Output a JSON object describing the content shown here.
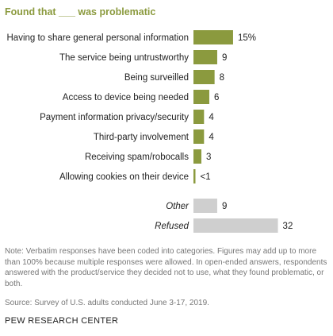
{
  "chart_data": {
    "type": "bar",
    "orientation": "horizontal",
    "title": "Found that ___ was problematic",
    "categories": [
      "Having to share general personal information",
      "The service being untrustworthy",
      "Being surveilled",
      "Access to device being needed",
      "Payment information privacy/security",
      "Third-party involvement",
      "Receiving spam/robocalls",
      "Allowing cookies on their device",
      "Other",
      "Refused"
    ],
    "values": [
      15,
      9,
      8,
      6,
      4,
      4,
      3,
      0.4,
      9,
      32
    ],
    "value_labels": [
      "15%",
      "9",
      "8",
      "6",
      "4",
      "4",
      "3",
      "<1",
      "9",
      "32"
    ],
    "italic_categories": [
      "Other",
      "Refused"
    ],
    "colors": {
      "main": "#8b9a3e",
      "other": "#cfcfcf",
      "title": "#8b9a3e",
      "note": "#777777"
    }
  },
  "note": "Note: Verbatim responses have been coded into categories. Figures may add up to more than 100% because multiple responses were allowed. In open-ended answers, respondents answered with the product/service they decided not to use, what they found problematic, or both.",
  "source": "Source: Survey of U.S. adults conducted June 3-17, 2019.",
  "brand": "PEW RESEARCH CENTER"
}
